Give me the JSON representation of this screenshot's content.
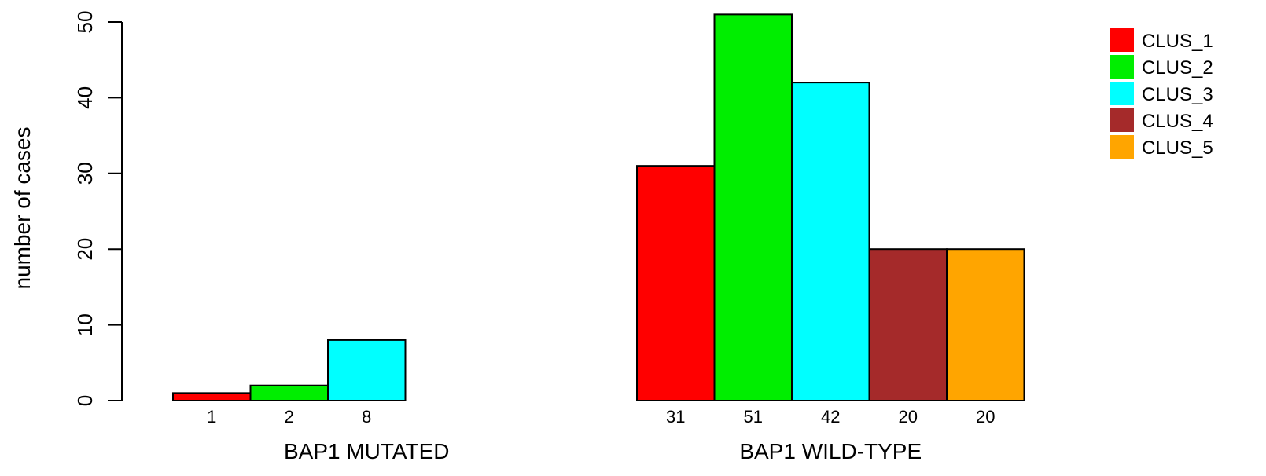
{
  "chart_data": {
    "type": "bar",
    "title": "",
    "ylabel": "number of cases",
    "xlabel": "",
    "ylim": [
      0,
      50
    ],
    "yticks": [
      0,
      10,
      20,
      30,
      40,
      50
    ],
    "grid": false,
    "legend_position": "top-right",
    "series": [
      {
        "name": "CLUS_1",
        "color": "#ff0000"
      },
      {
        "name": "CLUS_2",
        "color": "#00ee00"
      },
      {
        "name": "CLUS_3",
        "color": "#00ffff"
      },
      {
        "name": "CLUS_4",
        "color": "#a52a2a"
      },
      {
        "name": "CLUS_5",
        "color": "#ffa500"
      }
    ],
    "groups": [
      {
        "label": "BAP1 MUTATED",
        "values": [
          1,
          2,
          8,
          0,
          0
        ],
        "value_labels": [
          "1",
          "2",
          "8",
          "",
          ""
        ]
      },
      {
        "label": "BAP1 WILD-TYPE",
        "values": [
          31,
          51,
          42,
          20,
          20
        ],
        "value_labels": [
          "31",
          "51",
          "42",
          "20",
          "20"
        ]
      }
    ]
  }
}
